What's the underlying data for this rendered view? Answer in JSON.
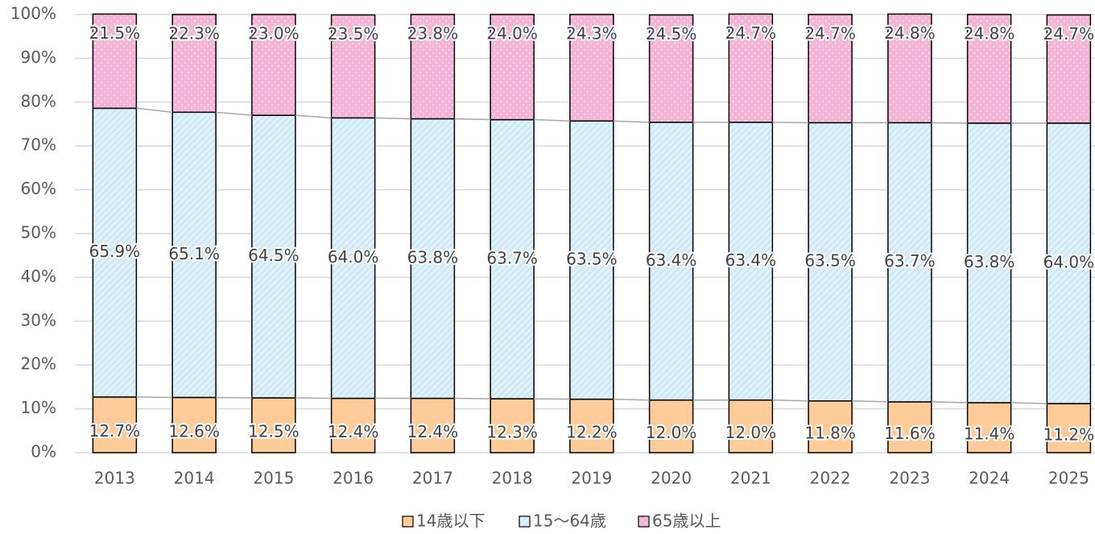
{
  "chart_data": {
    "type": "stacked_bar",
    "categories": [
      "2013",
      "2014",
      "2015",
      "2016",
      "2017",
      "2018",
      "2019",
      "2020",
      "2021",
      "2022",
      "2023",
      "2024",
      "2025"
    ],
    "series": [
      {
        "name": "14歳以下",
        "color": "#ffcc99",
        "pattern": "solid",
        "values": [
          12.7,
          12.6,
          12.5,
          12.4,
          12.4,
          12.3,
          12.2,
          12.0,
          12.0,
          11.8,
          11.6,
          11.4,
          11.2
        ],
        "value_labels": [
          "12.7%",
          "12.6%",
          "12.5%",
          "12.4%",
          "12.4%",
          "12.3%",
          "12.2%",
          "12.0%",
          "12.0%",
          "11.8%",
          "11.6%",
          "11.4%",
          "11.2%"
        ]
      },
      {
        "name": "15〜64歳",
        "color": "#ddf1fb",
        "pattern": "diagonal",
        "values": [
          65.9,
          65.1,
          64.5,
          64.0,
          63.8,
          63.7,
          63.5,
          63.4,
          63.4,
          63.5,
          63.7,
          63.8,
          64.0
        ],
        "value_labels": [
          "65.9%",
          "65.1%",
          "64.5%",
          "64.0%",
          "63.8%",
          "63.7%",
          "63.5%",
          "63.4%",
          "63.4%",
          "63.5%",
          "63.7%",
          "63.8%",
          "64.0%"
        ]
      },
      {
        "name": "65歳以上",
        "color": "#f7b3d4",
        "pattern": "dots",
        "values": [
          21.5,
          22.3,
          23.0,
          23.5,
          23.8,
          24.0,
          24.3,
          24.5,
          24.7,
          24.7,
          24.8,
          24.8,
          24.7
        ],
        "value_labels": [
          "21.5%",
          "22.3%",
          "23.0%",
          "23.5%",
          "23.8%",
          "24.0%",
          "24.3%",
          "24.5%",
          "24.7%",
          "24.7%",
          "24.8%",
          "24.8%",
          "24.7%"
        ]
      }
    ],
    "ylim": [
      0,
      100
    ],
    "yticks": [
      {
        "value": 0,
        "label": "0%"
      },
      {
        "value": 10,
        "label": "10%"
      },
      {
        "value": 20,
        "label": "20%"
      },
      {
        "value": 30,
        "label": "30%"
      },
      {
        "value": 40,
        "label": "40%"
      },
      {
        "value": 50,
        "label": "50%"
      },
      {
        "value": 60,
        "label": "60%"
      },
      {
        "value": 70,
        "label": "70%"
      },
      {
        "value": 80,
        "label": "80%"
      },
      {
        "value": 90,
        "label": "90%"
      },
      {
        "value": 100,
        "label": "100%"
      }
    ],
    "grid": true,
    "legend": "bottom"
  }
}
